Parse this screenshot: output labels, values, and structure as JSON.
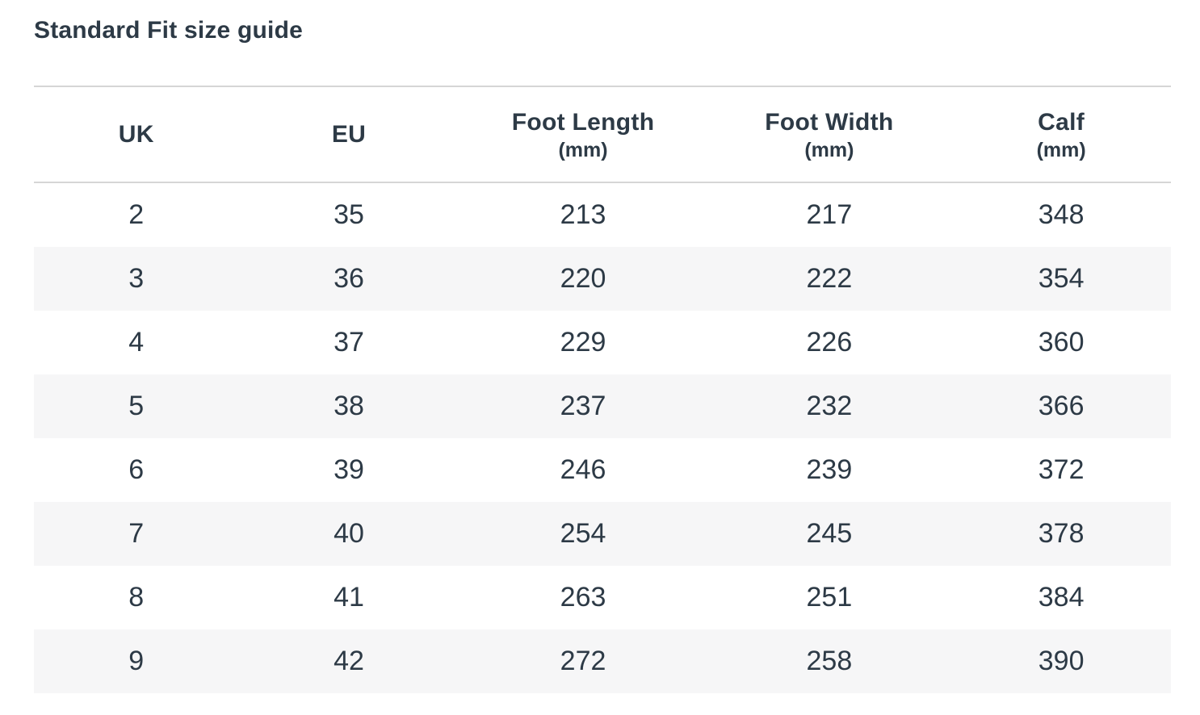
{
  "page": {
    "title": "Standard Fit size guide"
  },
  "colors": {
    "text": "#2d3a46",
    "row_stripe": "#f6f6f7",
    "border": "#d6d6d6",
    "background": "#ffffff"
  },
  "table": {
    "columns": [
      {
        "label": "UK",
        "unit": ""
      },
      {
        "label": "EU",
        "unit": ""
      },
      {
        "label": "Foot Length",
        "unit": "(mm)"
      },
      {
        "label": "Foot Width",
        "unit": "(mm)"
      },
      {
        "label": "Calf",
        "unit": "(mm)"
      }
    ],
    "column_widths_pct": [
      18.0,
      19.4,
      21.8,
      21.5,
      19.3
    ],
    "rows": [
      [
        "2",
        "35",
        "213",
        "217",
        "348"
      ],
      [
        "3",
        "36",
        "220",
        "222",
        "354"
      ],
      [
        "4",
        "37",
        "229",
        "226",
        "360"
      ],
      [
        "5",
        "38",
        "237",
        "232",
        "366"
      ],
      [
        "6",
        "39",
        "246",
        "239",
        "372"
      ],
      [
        "7",
        "40",
        "254",
        "245",
        "378"
      ],
      [
        "8",
        "41",
        "263",
        "251",
        "384"
      ],
      [
        "9",
        "42",
        "272",
        "258",
        "390"
      ]
    ]
  }
}
